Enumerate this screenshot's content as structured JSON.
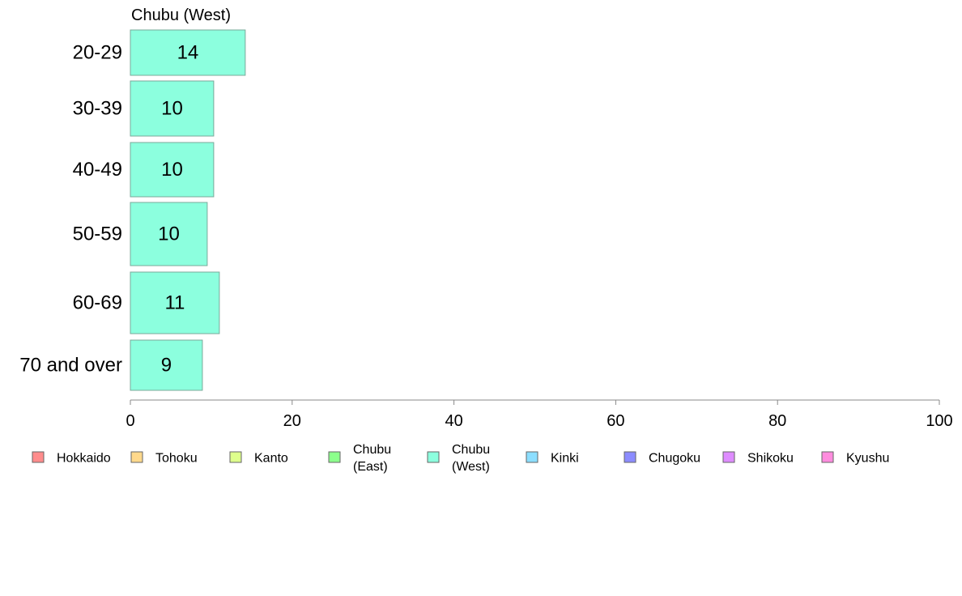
{
  "chart_data": {
    "type": "bar",
    "orientation": "horizontal",
    "title": "Chubu (West)",
    "xlabel": "",
    "ylabel": "",
    "categories": [
      "20-29",
      "30-39",
      "40-49",
      "50-59",
      "60-69",
      "70 and over"
    ],
    "series": [
      {
        "name": "Chubu (West)",
        "values": [
          14,
          10,
          10,
          10,
          11,
          9
        ]
      }
    ],
    "approx_bar_values": [
      14.2,
      10.3,
      10.3,
      9.5,
      11.0,
      8.9
    ],
    "xlim": [
      0,
      100
    ],
    "xticks": [
      0,
      20,
      40,
      60,
      80,
      100
    ],
    "grid": false,
    "bar_color": "#8cffde",
    "bar_edge_color": "#7aa89a",
    "legend": {
      "placement": "bottom",
      "items": [
        {
          "lines": [
            "Hokkaido"
          ],
          "color": "#ff8c8c"
        },
        {
          "lines": [
            "Tohoku"
          ],
          "color": "#ffd98c"
        },
        {
          "lines": [
            "Kanto"
          ],
          "color": "#deff8c"
        },
        {
          "lines": [
            "Chubu",
            "(East)"
          ],
          "color": "#8cff8c"
        },
        {
          "lines": [
            "Chubu",
            "(West)"
          ],
          "color": "#8cffde"
        },
        {
          "lines": [
            "Kinki"
          ],
          "color": "#8cdeff"
        },
        {
          "lines": [
            "Chugoku"
          ],
          "color": "#8c8cff"
        },
        {
          "lines": [
            "Shikoku"
          ],
          "color": "#de8cff"
        },
        {
          "lines": [
            "Kyushu"
          ],
          "color": "#ff8cde"
        }
      ]
    }
  }
}
